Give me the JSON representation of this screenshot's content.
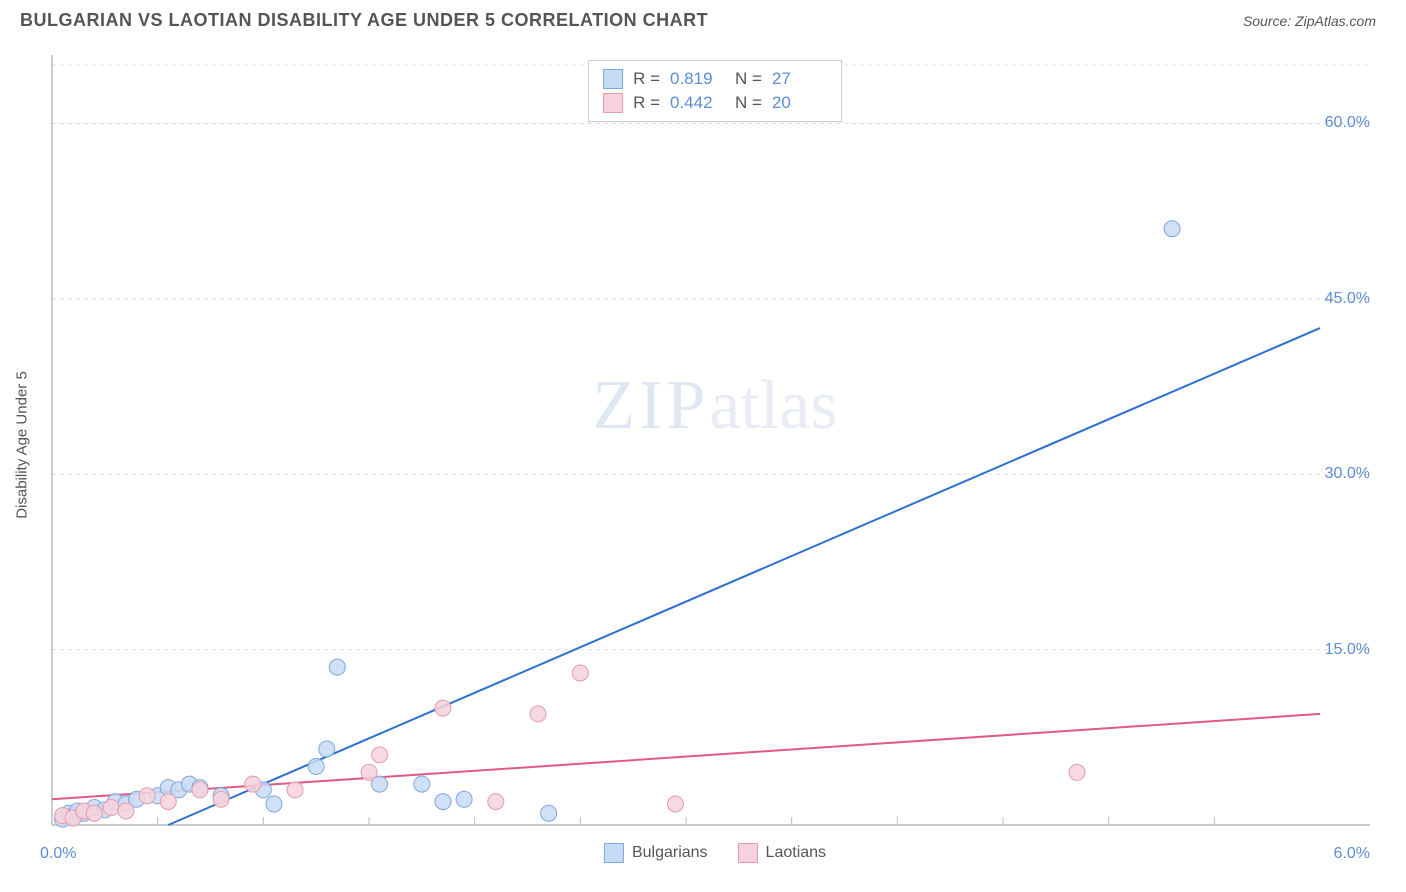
{
  "header": {
    "title": "BULGARIAN VS LAOTIAN DISABILITY AGE UNDER 5 CORRELATION CHART",
    "source": "Source: ZipAtlas.com"
  },
  "watermark": {
    "left": "ZIP",
    "right": "atlas"
  },
  "chart": {
    "type": "scatter",
    "background_color": "#ffffff",
    "grid_color": "#dddddd",
    "axis_color": "#999999",
    "tick_color": "#bbbbbb",
    "y_axis_label": "Disability Age Under 5",
    "xlim": [
      0.0,
      6.0
    ],
    "ylim": [
      0.0,
      65.0
    ],
    "x_ticks_minor_step": 0.5,
    "y_grid_lines": [
      15.0,
      30.0,
      45.0,
      60.0,
      65.0
    ],
    "y_tick_labels": [
      {
        "v": 15.0,
        "label": "15.0%"
      },
      {
        "v": 30.0,
        "label": "30.0%"
      },
      {
        "v": 45.0,
        "label": "45.0%"
      },
      {
        "v": 60.0,
        "label": "60.0%"
      }
    ],
    "x_tick_labels": {
      "origin": "0.0%",
      "max": "6.0%"
    },
    "marker_radius": 8,
    "marker_stroke_width": 1,
    "line_width": 2,
    "series": [
      {
        "name": "Bulgarians",
        "fill": "#c8dbf4",
        "stroke": "#7ea8de",
        "line_color": "#2d6fd2",
        "r_value": "0.819",
        "n_value": "27",
        "regression": {
          "x1": 0.55,
          "y1": 0.0,
          "x2": 6.0,
          "y2": 42.5
        },
        "points": [
          {
            "x": 0.05,
            "y": 0.5
          },
          {
            "x": 0.08,
            "y": 1.0
          },
          {
            "x": 0.1,
            "y": 0.8
          },
          {
            "x": 0.12,
            "y": 1.2
          },
          {
            "x": 0.15,
            "y": 1.0
          },
          {
            "x": 0.2,
            "y": 1.5
          },
          {
            "x": 0.25,
            "y": 1.3
          },
          {
            "x": 0.3,
            "y": 2.0
          },
          {
            "x": 0.35,
            "y": 1.8
          },
          {
            "x": 0.4,
            "y": 2.2
          },
          {
            "x": 0.5,
            "y": 2.5
          },
          {
            "x": 0.55,
            "y": 3.2
          },
          {
            "x": 0.6,
            "y": 3.0
          },
          {
            "x": 0.65,
            "y": 3.5
          },
          {
            "x": 0.7,
            "y": 3.2
          },
          {
            "x": 0.8,
            "y": 2.5
          },
          {
            "x": 1.0,
            "y": 3.0
          },
          {
            "x": 1.05,
            "y": 1.8
          },
          {
            "x": 1.25,
            "y": 5.0
          },
          {
            "x": 1.3,
            "y": 6.5
          },
          {
            "x": 1.35,
            "y": 13.5
          },
          {
            "x": 1.55,
            "y": 3.5
          },
          {
            "x": 1.75,
            "y": 3.5
          },
          {
            "x": 1.85,
            "y": 2.0
          },
          {
            "x": 1.95,
            "y": 2.2
          },
          {
            "x": 2.35,
            "y": 1.0
          },
          {
            "x": 5.3,
            "y": 51.0
          }
        ]
      },
      {
        "name": "Laotians",
        "fill": "#f6d2dc",
        "stroke": "#e59ab0",
        "line_color": "#e05a87",
        "r_value": "0.442",
        "n_value": "20",
        "regression": {
          "x1": 0.0,
          "y1": 2.2,
          "x2": 6.0,
          "y2": 9.5
        },
        "points": [
          {
            "x": 0.05,
            "y": 0.8
          },
          {
            "x": 0.1,
            "y": 0.6
          },
          {
            "x": 0.15,
            "y": 1.2
          },
          {
            "x": 0.2,
            "y": 1.0
          },
          {
            "x": 0.28,
            "y": 1.5
          },
          {
            "x": 0.35,
            "y": 1.2
          },
          {
            "x": 0.45,
            "y": 2.5
          },
          {
            "x": 0.55,
            "y": 2.0
          },
          {
            "x": 0.7,
            "y": 3.0
          },
          {
            "x": 0.8,
            "y": 2.2
          },
          {
            "x": 0.95,
            "y": 3.5
          },
          {
            "x": 1.15,
            "y": 3.0
          },
          {
            "x": 1.5,
            "y": 4.5
          },
          {
            "x": 1.55,
            "y": 6.0
          },
          {
            "x": 1.85,
            "y": 10.0
          },
          {
            "x": 2.1,
            "y": 2.0
          },
          {
            "x": 2.3,
            "y": 9.5
          },
          {
            "x": 2.5,
            "y": 13.0
          },
          {
            "x": 2.95,
            "y": 1.8
          },
          {
            "x": 4.85,
            "y": 4.5
          }
        ]
      }
    ],
    "legend_top": {
      "r_label": "R =",
      "n_label": "N ="
    },
    "legend_bottom": [
      {
        "swatch_fill": "#c8dbf4",
        "swatch_stroke": "#7ea8de",
        "label": "Bulgarians"
      },
      {
        "swatch_fill": "#f6d2dc",
        "swatch_stroke": "#e59ab0",
        "label": "Laotians"
      }
    ]
  }
}
